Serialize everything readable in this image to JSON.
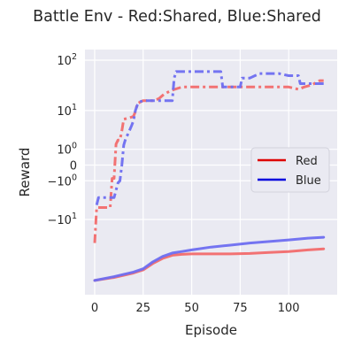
{
  "chart_data": {
    "type": "line",
    "title": "Battle Env - Red:Shared, Blue:Shared",
    "xlabel": "Episode",
    "ylabel": "Reward",
    "xlim": [
      -5,
      125
    ],
    "yscale": "symlog",
    "ylim": [
      -300,
      160
    ],
    "grid": true,
    "legend_position": "center-right",
    "x_ticks": [
      0,
      25,
      50,
      75,
      100
    ],
    "y_ticks": [
      {
        "value": 100,
        "label": "10^2"
      },
      {
        "value": 10,
        "label": "10^1"
      },
      {
        "value": 1,
        "label": "10^0"
      },
      {
        "value": 0,
        "label": "0"
      },
      {
        "value": -1,
        "label": "-10^0"
      },
      {
        "value": -10,
        "label": "-10^1"
      }
    ],
    "legend": [
      {
        "name": "Red",
        "color": "#dd0000"
      },
      {
        "name": "Blue",
        "color": "#0000dd"
      }
    ],
    "series": [
      {
        "name": "Red",
        "kind": "dashdot",
        "color": "#f26b6b",
        "points": [
          [
            0,
            -30
          ],
          [
            1,
            -5.5
          ],
          [
            5,
            -5.5
          ],
          [
            8,
            -5.5
          ],
          [
            9,
            -0.8
          ],
          [
            10,
            -0.8
          ],
          [
            11,
            1.5
          ],
          [
            12,
            2
          ],
          [
            13,
            2
          ],
          [
            14,
            3.5
          ],
          [
            15,
            6.5
          ],
          [
            18,
            7
          ],
          [
            20,
            7.5
          ],
          [
            21,
            9.5
          ],
          [
            22,
            14
          ],
          [
            25,
            16
          ],
          [
            30,
            16
          ],
          [
            33,
            17.5
          ],
          [
            36,
            22
          ],
          [
            40,
            26
          ],
          [
            45,
            30
          ],
          [
            50,
            30
          ],
          [
            60,
            30
          ],
          [
            70,
            30
          ],
          [
            80,
            30
          ],
          [
            90,
            30
          ],
          [
            100,
            30
          ],
          [
            105,
            27
          ],
          [
            108,
            30
          ],
          [
            112,
            33
          ],
          [
            116,
            40
          ],
          [
            118,
            40
          ]
        ]
      },
      {
        "name": "Blue",
        "kind": "dashdot",
        "color": "#6e6ef0",
        "points": [
          [
            1,
            -4.8
          ],
          [
            2,
            -3.2
          ],
          [
            5,
            -3.2
          ],
          [
            10,
            -3.2
          ],
          [
            12,
            -1.2
          ],
          [
            13,
            -1.0
          ],
          [
            14,
            0
          ],
          [
            15,
            1.4
          ],
          [
            16,
            2.2
          ],
          [
            17,
            2.8
          ],
          [
            18,
            3.6
          ],
          [
            19,
            4.6
          ],
          [
            20,
            6
          ],
          [
            21,
            10
          ],
          [
            22,
            13
          ],
          [
            23,
            15
          ],
          [
            25,
            16
          ],
          [
            30,
            16
          ],
          [
            35,
            16
          ],
          [
            40,
            16
          ],
          [
            41,
            45
          ],
          [
            42,
            60
          ],
          [
            45,
            60
          ],
          [
            50,
            60
          ],
          [
            55,
            60
          ],
          [
            60,
            60
          ],
          [
            65,
            60
          ],
          [
            66,
            30
          ],
          [
            70,
            30
          ],
          [
            75,
            30
          ],
          [
            76,
            45
          ],
          [
            80,
            45
          ],
          [
            85,
            55
          ],
          [
            90,
            55
          ],
          [
            95,
            55
          ],
          [
            100,
            50
          ],
          [
            105,
            50
          ],
          [
            106,
            35
          ],
          [
            110,
            35
          ],
          [
            115,
            35
          ],
          [
            118,
            35
          ]
        ]
      },
      {
        "name": "Red",
        "kind": "solid",
        "color": "#f26b6b",
        "points": [
          [
            0,
            -160
          ],
          [
            10,
            -140
          ],
          [
            20,
            -115
          ],
          [
            25,
            -100
          ],
          [
            30,
            -75
          ],
          [
            35,
            -60
          ],
          [
            40,
            -52
          ],
          [
            45,
            -50
          ],
          [
            50,
            -49
          ],
          [
            60,
            -49
          ],
          [
            70,
            -49
          ],
          [
            80,
            -48
          ],
          [
            90,
            -46
          ],
          [
            100,
            -44
          ],
          [
            110,
            -41
          ],
          [
            118,
            -39
          ]
        ]
      },
      {
        "name": "Blue",
        "kind": "solid",
        "color": "#6e6ef0",
        "points": [
          [
            0,
            -160
          ],
          [
            10,
            -135
          ],
          [
            20,
            -110
          ],
          [
            25,
            -95
          ],
          [
            30,
            -70
          ],
          [
            35,
            -55
          ],
          [
            40,
            -47
          ],
          [
            45,
            -44
          ],
          [
            50,
            -41
          ],
          [
            60,
            -36
          ],
          [
            70,
            -33
          ],
          [
            80,
            -30
          ],
          [
            90,
            -28
          ],
          [
            100,
            -26
          ],
          [
            110,
            -24
          ],
          [
            118,
            -23
          ]
        ]
      }
    ]
  }
}
